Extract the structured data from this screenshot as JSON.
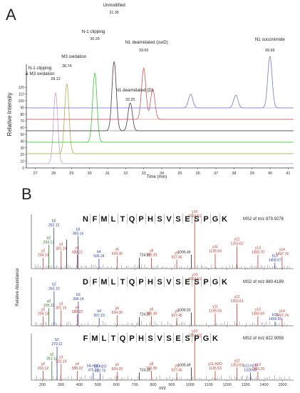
{
  "colors": {
    "black": "#222222",
    "red": "#c0392b",
    "blue": "#2c3ea8",
    "green": "#2a7a2a",
    "axis": "#333333"
  },
  "chart_data": [
    {
      "type": "line",
      "panel_label": "A",
      "xlabel": "Time (min)",
      "ylabel": "Relative Intensity",
      "xlim": [
        26.5,
        41.3
      ],
      "ylim": [
        0,
        140
      ],
      "x_ticks": [
        27,
        28,
        29,
        30,
        31,
        32,
        33,
        34,
        35,
        36,
        37,
        38,
        39,
        40,
        41
      ],
      "y_ticks": [
        0,
        10,
        20,
        30,
        40,
        50,
        60,
        70,
        80,
        90,
        100,
        110,
        120,
        130,
        140
      ],
      "series": [
        {
          "color": "#c8a0c8",
          "peaks": [
            [
              28.12,
              112
            ]
          ]
        },
        {
          "color": "#b0b050",
          "peaks": [
            [
              28.74,
              118
            ]
          ]
        },
        {
          "color": "#33cc33",
          "peaks": [
            [
              30.29,
              126
            ]
          ]
        },
        {
          "color": "#553344",
          "peaks": [
            [
              31.36,
              136
            ],
            [
              32.25,
              55
            ]
          ]
        },
        {
          "color": "#cc5555",
          "peaks": [
            [
              33.0,
              110
            ],
            [
              33.5,
              65
            ]
          ]
        },
        {
          "color": "#7777cc",
          "peaks": [
            [
              39.99,
              121
            ],
            [
              35.6,
              32
            ],
            [
              38.1,
              30
            ]
          ]
        }
      ],
      "peak_labels": [
        {
          "name": "N-1 clipping\n& M3 oxidation",
          "rt": "28.12"
        },
        {
          "name": "M3 oxidation",
          "rt": "28.74"
        },
        {
          "name": "N-1 clipping",
          "rt": "30.29"
        },
        {
          "name": "Unmodified",
          "rt": "31.36"
        },
        {
          "name": "N1 deamidated (isoD)",
          "rt": "33.00"
        },
        {
          "name": "N1 deamidated (D)",
          "rt": "32.25"
        },
        {
          "name": "N1 succinimide",
          "rt": "39.99"
        }
      ]
    },
    {
      "type": "bar",
      "panel_label": "B",
      "xlabel": "m/z",
      "ylabel": "Relative Abundance",
      "xlim": [
        140,
        1560
      ],
      "x_ticks": [
        200,
        300,
        400,
        500,
        600,
        700,
        800,
        900,
        1000,
        1100,
        1200,
        1300,
        1400,
        1500
      ],
      "spectra": [
        {
          "sequence": "NFMLTQPHSVSESPGK",
          "title": "MS2 of m/z 879.9278",
          "peaks": [
            {
              "mz": 204.13,
              "rel": 22,
              "ion": "y2",
              "c": "red"
            },
            {
              "mz": 234.12,
              "rel": 48,
              "ion": "a2",
              "c": "green"
            },
            {
              "mz": 262.12,
              "rel": 82,
              "ion": "b2",
              "c": "blue"
            },
            {
              "mz": 301.19,
              "rel": 35,
              "ion": "y3",
              "c": "red"
            },
            {
              "mz": 331.19,
              "rel": 58,
              "ion": "b3 fragment",
              "c": "black"
            },
            {
              "mz": 393.16,
              "rel": 65,
              "ion": "b3",
              "c": "blue"
            },
            {
              "mz": 388.22,
              "rel": 28,
              "ion": "y4",
              "c": "red"
            },
            {
              "mz": 506.24,
              "rel": 20,
              "ion": "b4",
              "c": "blue"
            },
            {
              "mz": 604.3,
              "rel": 25,
              "ion": "y6",
              "c": "red"
            },
            {
              "mz": 724.32,
              "rel": 22,
              "ion": "",
              "c": "black"
            },
            {
              "mz": 790.39,
              "rel": 22,
              "ion": "y8",
              "c": "red"
            },
            {
              "mz": 927.45,
              "rel": 18,
              "ion": "y9",
              "c": "red"
            },
            {
              "mz": 1006.49,
              "rel": 28,
              "ion": "",
              "c": "black"
            },
            {
              "mz": 1024.51,
              "rel": 100,
              "ion": "y10",
              "c": "red"
            },
            {
              "mz": 1135.54,
              "rel": 30,
              "ion": "y11",
              "c": "red"
            },
            {
              "mz": 1253.62,
              "rel": 45,
              "ion": "y12",
              "c": "red"
            },
            {
              "mz": 1366.7,
              "rel": 28,
              "ion": "y13",
              "c": "red"
            },
            {
              "mz": 1458.67,
              "rel": 12,
              "ion": "b13",
              "c": "blue"
            },
            {
              "mz": 1497.74,
              "rel": 24,
              "ion": "y14",
              "c": "red"
            }
          ],
          "labels": [
            "y2",
            "204.13",
            "a2",
            "234.12",
            "b2",
            "262.12",
            "y3",
            "301.19",
            "b3",
            "393.16",
            "y4",
            "388.22",
            "b4",
            "506.24",
            "y6",
            "604.30",
            "724.32",
            "y8",
            "790.39",
            "y9",
            "927.45",
            "1006.49",
            "y10",
            "1024.51",
            "y11",
            "1135.54",
            "y12",
            "1253.62",
            "y13",
            "1366.70",
            "b13",
            "1458.67",
            "y14",
            "1497.74"
          ]
        },
        {
          "sequence": "DFMLTQPHSVSESPGK",
          "title": "MS2 of m/z 880.4189",
          "peaks": [
            {
              "mz": 204.13,
              "rel": 22,
              "ion": "y2",
              "c": "red"
            },
            {
              "mz": 235.11,
              "rel": 40,
              "ion": "a2",
              "c": "green"
            },
            {
              "mz": 263.1,
              "rel": 78,
              "ion": "b2",
              "c": "blue"
            },
            {
              "mz": 301.19,
              "rel": 35,
              "ion": "y3",
              "c": "red"
            },
            {
              "mz": 394.14,
              "rel": 55,
              "ion": "b3",
              "c": "blue"
            },
            {
              "mz": 388.22,
              "rel": 26,
              "ion": "y4",
              "c": "red"
            },
            {
              "mz": 507.23,
              "rel": 18,
              "ion": "b4",
              "c": "blue"
            },
            {
              "mz": 604.3,
              "rel": 24,
              "ion": "y6",
              "c": "red"
            },
            {
              "mz": 724.32,
              "rel": 20,
              "ion": "",
              "c": "black"
            },
            {
              "mz": 790.39,
              "rel": 22,
              "ion": "y8",
              "c": "red"
            },
            {
              "mz": 927.45,
              "rel": 18,
              "ion": "y9",
              "c": "red"
            },
            {
              "mz": 1006.5,
              "rel": 30,
              "ion": "",
              "c": "black"
            },
            {
              "mz": 1024.51,
              "rel": 100,
              "ion": "y10",
              "c": "red"
            },
            {
              "mz": 1135.54,
              "rel": 28,
              "ion": "y11",
              "c": "red"
            },
            {
              "mz": 1253.61,
              "rel": 50,
              "ion": "y12",
              "c": "red"
            },
            {
              "mz": 1366.69,
              "rel": 22,
              "ion": "y13",
              "c": "red"
            },
            {
              "mz": 1459.65,
              "rel": 10,
              "ion": "b13",
              "c": "blue"
            },
            {
              "mz": 1497.74,
              "rel": 18,
              "ion": "y14",
              "c": "red"
            }
          ],
          "labels": [
            "y2",
            "204.13",
            "a2",
            "235.11",
            "b2",
            "263.10",
            "y3",
            "301.19",
            "b3",
            "394.14",
            "y4",
            "388.22",
            "b4",
            "507.23",
            "y6",
            "604.30",
            "724.32",
            "y8",
            "790.39",
            "y9",
            "927.45",
            "1006.50",
            "y10",
            "1024.51",
            "y11",
            "1135.54",
            "y12",
            "1253.61",
            "y13",
            "1366.69",
            "b13",
            "1459.65",
            "y14",
            "1497.74"
          ]
        },
        {
          "sequence": "FMLTQPHSVSESPGK",
          "title": "MS2 of m/z 822.9059",
          "peaks": [
            {
              "mz": 203.12,
              "rel": 22,
              "ion": "y2",
              "c": "red"
            },
            {
              "mz": 251.12,
              "rel": 45,
              "ion": "a2",
              "c": "green"
            },
            {
              "mz": 279.12,
              "rel": 80,
              "ion": "b2",
              "c": "blue"
            },
            {
              "mz": 301.19,
              "rel": 38,
              "ion": "y3",
              "c": "red"
            },
            {
              "mz": 388.22,
              "rel": 22,
              "ion": "y4",
              "c": "red"
            },
            {
              "mz": 475.24,
              "rel": 18,
              "ion": "b4-H2O",
              "c": "blue"
            },
            {
              "mz": 512.76,
              "rel": 16,
              "ion": "b9-H2O",
              "c": "blue"
            },
            {
              "mz": 604.29,
              "rel": 20,
              "ion": "y6",
              "c": "red"
            },
            {
              "mz": 724.33,
              "rel": 18,
              "ion": "",
              "c": "black"
            },
            {
              "mz": 790.39,
              "rel": 22,
              "ion": "y8",
              "c": "red"
            },
            {
              "mz": 927.46,
              "rel": 18,
              "ion": "y9",
              "c": "red"
            },
            {
              "mz": 1006.49,
              "rel": 30,
              "ion": "",
              "c": "black"
            },
            {
              "mz": 1024.51,
              "rel": 100,
              "ion": "y10",
              "c": "red"
            },
            {
              "mz": 1135.53,
              "rel": 22,
              "ion": "y11-H2O",
              "c": "red"
            },
            {
              "mz": 1253.61,
              "rel": 30,
              "ion": "y12",
              "c": "red"
            },
            {
              "mz": 1326.32,
              "rel": 18,
              "ion": "b12-H2O",
              "c": "blue"
            },
            {
              "mz": 1366.7,
              "rel": 20,
              "ion": "y13",
              "c": "red"
            }
          ],
          "labels": [
            "y2",
            "203.12",
            "a2",
            "251.12",
            "b2",
            "279.12",
            "y3",
            "301.19",
            "y4",
            "388.22",
            "b4-H2O",
            "475.24",
            "b9-H2O",
            "512.76",
            "y6",
            "604.29",
            "724.33",
            "y8",
            "790.39",
            "y9",
            "927.46",
            "1006.49",
            "y10",
            "1024.51",
            "y11-H2O",
            "1135.53",
            "y12",
            "1253.61",
            "b12-H2O",
            "1326.32",
            "y13",
            "1366.70"
          ]
        }
      ]
    }
  ]
}
